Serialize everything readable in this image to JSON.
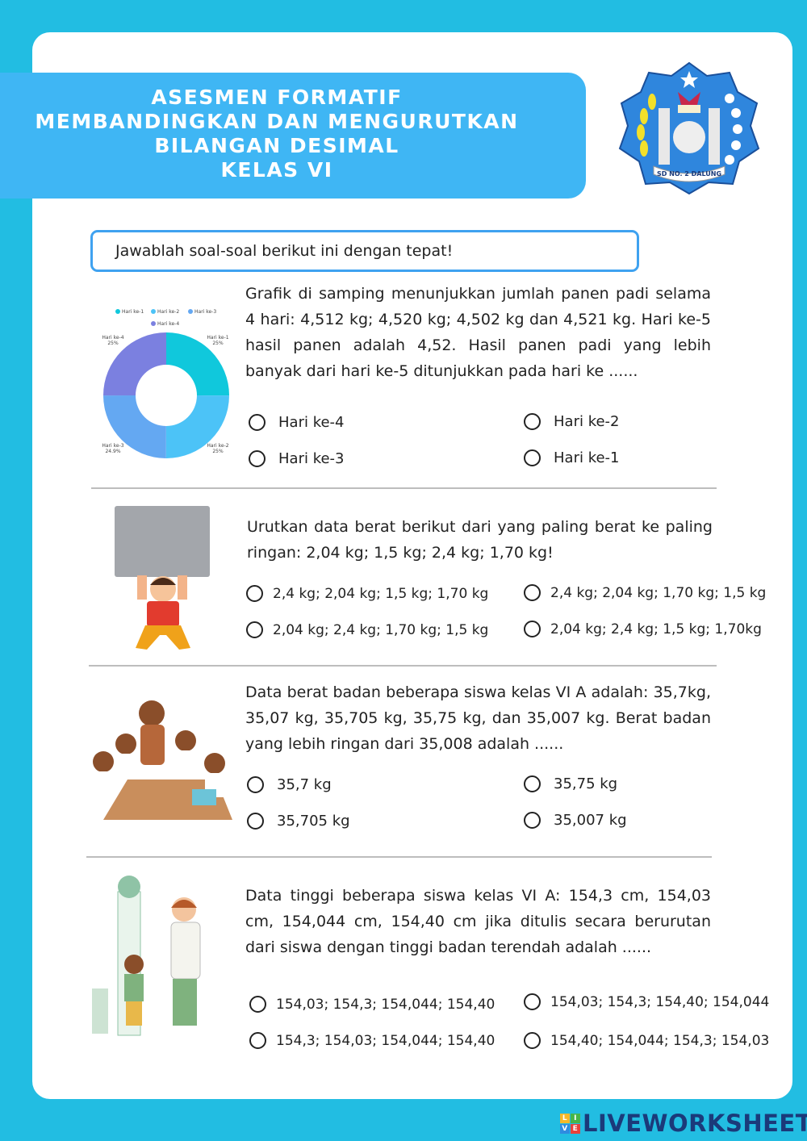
{
  "header": {
    "lines": [
      "ASESMEN FORMATIF",
      "MEMBANDINGKAN DAN MENGURUTKAN",
      "BILANGAN DESIMAL",
      "KELAS VI"
    ]
  },
  "logo": {
    "text": "SD NO. 2 DALUNG"
  },
  "instruction": "Jawablah soal-soal berikut ini dengan tepat!",
  "questions": [
    {
      "text": "Grafik di samping menunjukkan jumlah panen padi selama 4 hari: 4,512 kg;  4,520 kg;  4,502 kg dan 4,521 kg. Hari ke-5 hasil panen adalah 4,52. Hasil panen padi yang lebih banyak dari hari ke-5 ditunjukkan pada hari ke ......",
      "options": [
        "Hari ke-4",
        "Hari ke-2",
        "Hari ke-3",
        "Hari ke-1"
      ]
    },
    {
      "text": "Urutkan data berat berikut dari yang paling berat ke paling ringan: 2,04 kg; 1,5 kg; 2,4 kg; 1,70 kg!",
      "options": [
        "2,4 kg; 2,04 kg; 1,5 kg; 1,70 kg",
        "2,4 kg; 2,04 kg; 1,70 kg; 1,5 kg",
        "2,04 kg; 2,4 kg; 1,70 kg; 1,5 kg",
        "2,04 kg; 2,4 kg; 1,5 kg; 1,70kg"
      ]
    },
    {
      "text": "Data berat badan beberapa siswa kelas VI A adalah: 35,7kg, 35,07 kg, 35,705 kg, 35,75 kg, dan 35,007 kg. Berat badan yang lebih ringan dari 35,008 adalah ......",
      "options": [
        "35,7 kg",
        "35,75 kg",
        "35,705 kg",
        "35,007 kg"
      ]
    },
    {
      "text": "Data tinggi beberapa siswa kelas VI A: 154,3 cm, 154,03 cm, 154,044 cm, 154,40 cm jika ditulis secara berurutan dari siswa dengan tinggi badan terendah adalah ......",
      "options": [
        "154,03; 154,3; 154,044; 154,40",
        "154,03; 154,3; 154,40; 154,044",
        "154,3; 154,03; 154,044; 154,40",
        "154,40; 154,044; 154,3; 154,03"
      ]
    }
  ],
  "chart_data": {
    "type": "pie",
    "donut": true,
    "categories": [
      "Hari ke-1",
      "Hari ke-2",
      "Hari ke-3",
      "Hari ke-4"
    ],
    "values": [
      25,
      25,
      24.9,
      25
    ],
    "labels": [
      "25%",
      "25%",
      "24.9%",
      "25%"
    ],
    "colors": [
      "#10c8dc",
      "#4cc3f7",
      "#64a8f2",
      "#7b80e0"
    ],
    "legend": "top"
  },
  "watermark": "LIVEWORKSHEETS"
}
